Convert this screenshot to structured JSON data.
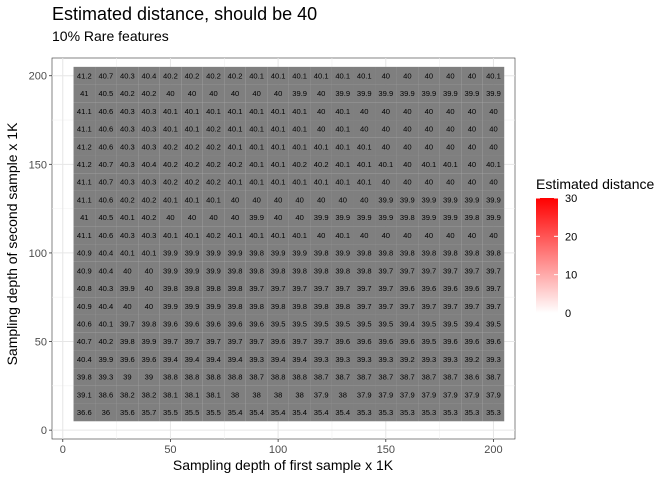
{
  "chart_data": {
    "type": "heatmap",
    "title": "Estimated distance, should be 40",
    "subtitle": "10% Rare features",
    "xlabel": "Sampling depth of first sample x 1K",
    "ylabel": "Sampling depth of second sample x 1K",
    "xlim": [
      -5,
      210
    ],
    "ylim": [
      -5,
      210
    ],
    "x_ticks": [
      0,
      50,
      100,
      150,
      200
    ],
    "y_ticks": [
      0,
      50,
      100,
      150,
      200
    ],
    "grid": true,
    "x": [
      10,
      20,
      30,
      40,
      50,
      60,
      70,
      80,
      90,
      100,
      110,
      120,
      130,
      140,
      150,
      160,
      170,
      180,
      190,
      200
    ],
    "y": [
      200,
      190,
      180,
      170,
      160,
      150,
      140,
      130,
      120,
      110,
      100,
      90,
      80,
      70,
      60,
      50,
      40,
      30,
      20,
      10
    ],
    "cell_values_note_rows_top_to_bottom": true,
    "values": [
      [
        "41.2",
        "40.7",
        "40.3",
        "40.4",
        "40.2",
        "40.2",
        "40.2",
        "40.2",
        "40.1",
        "40.1",
        "40.1",
        "40.1",
        "40.1",
        "40.1",
        "40",
        "40",
        "40",
        "40",
        "40",
        "40.1"
      ],
      [
        "41",
        "40.5",
        "40.2",
        "40.2",
        "40",
        "40",
        "40",
        "40",
        "40",
        "40",
        "39.9",
        "40",
        "39.9",
        "39.9",
        "39.9",
        "39.9",
        "39.9",
        "39.9",
        "39.9",
        "39.9"
      ],
      [
        "41.1",
        "40.6",
        "40.3",
        "40.3",
        "40.1",
        "40.1",
        "40.1",
        "40.1",
        "40.1",
        "40.1",
        "40.1",
        "40",
        "40.1",
        "40",
        "40",
        "40",
        "40",
        "40",
        "40",
        "40"
      ],
      [
        "41.1",
        "40.6",
        "40.3",
        "40.3",
        "40.1",
        "40.1",
        "40.2",
        "40.1",
        "40.1",
        "40.1",
        "40.1",
        "40",
        "40.1",
        "40",
        "40",
        "40",
        "40",
        "40",
        "40",
        "40"
      ],
      [
        "41.2",
        "40.6",
        "40.3",
        "40.3",
        "40.2",
        "40.2",
        "40.2",
        "40.1",
        "40.1",
        "40.1",
        "40.1",
        "40.1",
        "40.1",
        "40.1",
        "40",
        "40",
        "40",
        "40",
        "40",
        "40"
      ],
      [
        "41.2",
        "40.7",
        "40.3",
        "40.4",
        "40.2",
        "40.2",
        "40.2",
        "40.2",
        "40.1",
        "40.1",
        "40.2",
        "40.2",
        "40.1",
        "40.1",
        "40.1",
        "40",
        "40.1",
        "40.1",
        "40",
        "40.1"
      ],
      [
        "41.1",
        "40.7",
        "40.3",
        "40.3",
        "40.2",
        "40.2",
        "40.2",
        "40.1",
        "40.1",
        "40.1",
        "40.1",
        "40.1",
        "40.1",
        "40.1",
        "40",
        "40",
        "40",
        "40",
        "40",
        "40"
      ],
      [
        "41.1",
        "40.6",
        "40.2",
        "40.2",
        "40.1",
        "40.1",
        "40.1",
        "40",
        "40",
        "40",
        "40",
        "40",
        "40",
        "40",
        "39.9",
        "39.9",
        "39.9",
        "39.9",
        "39.9",
        "39.9"
      ],
      [
        "41",
        "40.5",
        "40.1",
        "40.2",
        "40",
        "40",
        "40",
        "40",
        "39.9",
        "40",
        "40",
        "39.9",
        "39.9",
        "39.9",
        "39.9",
        "39.8",
        "39.9",
        "39.9",
        "39.8",
        "39.9"
      ],
      [
        "41.1",
        "40.6",
        "40.3",
        "40.3",
        "40.1",
        "40.1",
        "40.2",
        "40.1",
        "40.1",
        "40.1",
        "40.1",
        "40",
        "40.1",
        "40",
        "40",
        "40",
        "40",
        "40",
        "40",
        "40"
      ],
      [
        "40.9",
        "40.4",
        "40.1",
        "40.1",
        "39.9",
        "39.9",
        "39.9",
        "39.9",
        "39.8",
        "39.9",
        "39.9",
        "39.8",
        "39.9",
        "39.8",
        "39.8",
        "39.8",
        "39.8",
        "39.8",
        "39.8",
        "39.8"
      ],
      [
        "40.9",
        "40.4",
        "40",
        "40",
        "39.9",
        "39.9",
        "39.9",
        "39.8",
        "39.8",
        "39.8",
        "39.8",
        "39.8",
        "39.8",
        "39.8",
        "39.7",
        "39.7",
        "39.7",
        "39.7",
        "39.7",
        "39.7"
      ],
      [
        "40.8",
        "40.3",
        "39.9",
        "40",
        "39.8",
        "39.8",
        "39.8",
        "39.8",
        "39.7",
        "39.7",
        "39.7",
        "39.7",
        "39.7",
        "39.7",
        "39.7",
        "39.6",
        "39.6",
        "39.6",
        "39.6",
        "39.7"
      ],
      [
        "40.9",
        "40.4",
        "40",
        "40",
        "39.9",
        "39.9",
        "39.9",
        "39.8",
        "39.8",
        "39.8",
        "39.8",
        "39.8",
        "39.8",
        "39.7",
        "39.7",
        "39.7",
        "39.7",
        "39.7",
        "39.7",
        "39.7"
      ],
      [
        "40.6",
        "40.1",
        "39.7",
        "39.8",
        "39.6",
        "39.6",
        "39.6",
        "39.6",
        "39.6",
        "39.5",
        "39.5",
        "39.5",
        "39.5",
        "39.5",
        "39.5",
        "39.4",
        "39.5",
        "39.5",
        "39.4",
        "39.5"
      ],
      [
        "40.7",
        "40.2",
        "39.8",
        "39.9",
        "39.7",
        "39.7",
        "39.7",
        "39.7",
        "39.7",
        "39.6",
        "39.7",
        "39.7",
        "39.6",
        "39.6",
        "39.6",
        "39.6",
        "39.5",
        "39.6",
        "39.6",
        "39.6"
      ],
      [
        "40.4",
        "39.9",
        "39.6",
        "39.6",
        "39.4",
        "39.4",
        "39.4",
        "39.4",
        "39.3",
        "39.4",
        "39.4",
        "39.3",
        "39.3",
        "39.3",
        "39.3",
        "39.2",
        "39.3",
        "39.3",
        "39.2",
        "39.3"
      ],
      [
        "39.8",
        "39.3",
        "39",
        "39",
        "38.8",
        "38.8",
        "38.8",
        "38.8",
        "38.7",
        "38.8",
        "38.8",
        "38.7",
        "38.7",
        "38.7",
        "38.7",
        "38.7",
        "38.7",
        "38.7",
        "38.6",
        "38.7"
      ],
      [
        "39.1",
        "38.6",
        "38.2",
        "38.2",
        "38.1",
        "38.1",
        "38.1",
        "38",
        "38",
        "38",
        "38",
        "37.9",
        "38",
        "37.9",
        "37.9",
        "37.9",
        "37.9",
        "37.9",
        "37.9",
        "37.9"
      ],
      [
        "36.6",
        "36",
        "35.6",
        "35.7",
        "35.5",
        "35.5",
        "35.5",
        "35.4",
        "35.4",
        "35.4",
        "35.4",
        "35.4",
        "35.4",
        "35.3",
        "35.3",
        "35.3",
        "35.3",
        "35.3",
        "35.3",
        "35.3"
      ]
    ],
    "tile_fill": "#7f7f7f",
    "legend": {
      "title": "Estimated distance",
      "ticks": [
        0,
        10,
        20,
        30
      ],
      "range": [
        0,
        30
      ],
      "low_color": "#ffffff",
      "high_color": "#ff0000",
      "placement": "right"
    }
  }
}
